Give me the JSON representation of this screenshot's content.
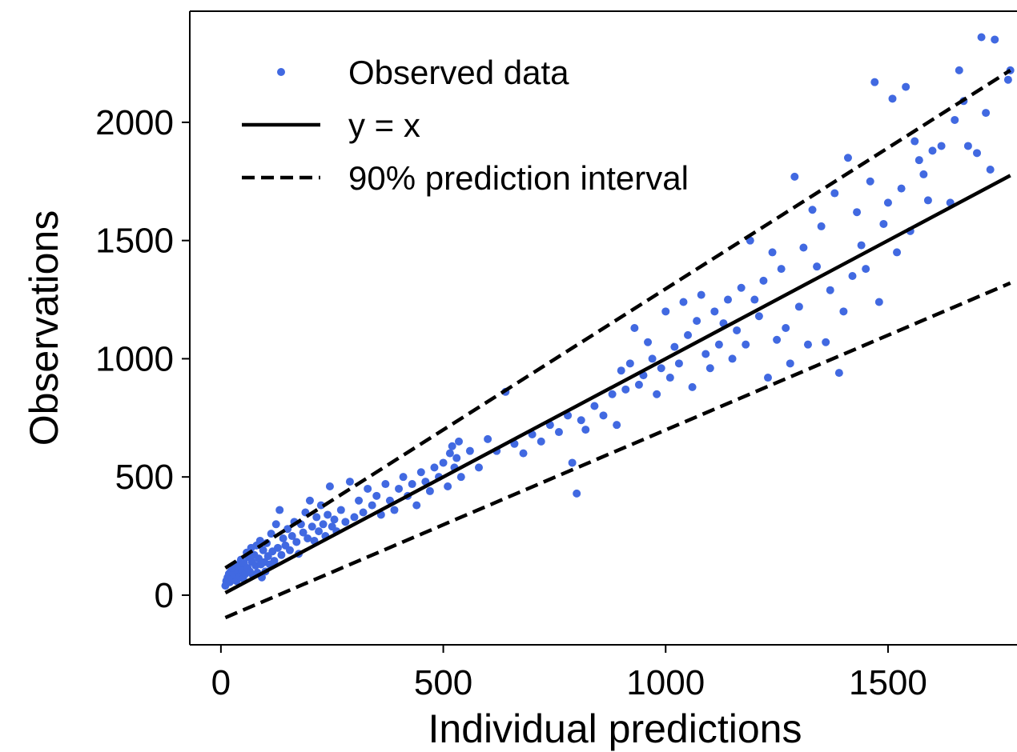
{
  "chart_data": {
    "type": "scatter",
    "title": "",
    "xlabel": "Individual predictions",
    "ylabel": "Observations",
    "xlim": [
      -70,
      1790
    ],
    "ylim": [
      -210,
      2470
    ],
    "xticks": [
      0,
      500,
      1000,
      1500
    ],
    "yticks": [
      0,
      500,
      1000,
      1500,
      2000
    ],
    "grid": false,
    "legend": "top-left",
    "colors": {
      "points": "#4169e1",
      "lines": "#000000"
    },
    "series": [
      {
        "name": "Observed data",
        "kind": "points",
        "points": [
          [
            10,
            40
          ],
          [
            12,
            60
          ],
          [
            15,
            75
          ],
          [
            18,
            90
          ],
          [
            20,
            55
          ],
          [
            22,
            100
          ],
          [
            25,
            70
          ],
          [
            28,
            110
          ],
          [
            30,
            85
          ],
          [
            32,
            130
          ],
          [
            35,
            60
          ],
          [
            38,
            95
          ],
          [
            40,
            120
          ],
          [
            42,
            80
          ],
          [
            45,
            150
          ],
          [
            48,
            105
          ],
          [
            50,
            70
          ],
          [
            52,
            135
          ],
          [
            55,
            90
          ],
          [
            58,
            180
          ],
          [
            60,
            115
          ],
          [
            62,
            160
          ],
          [
            65,
            100
          ],
          [
            68,
            200
          ],
          [
            70,
            140
          ],
          [
            72,
            85
          ],
          [
            75,
            170
          ],
          [
            78,
            125
          ],
          [
            80,
            210
          ],
          [
            82,
            95
          ],
          [
            85,
            155
          ],
          [
            88,
            230
          ],
          [
            90,
            130
          ],
          [
            92,
            75
          ],
          [
            95,
            190
          ],
          [
            98,
            140
          ],
          [
            100,
            100
          ],
          [
            103,
            220
          ],
          [
            106,
            165
          ],
          [
            110,
            130
          ],
          [
            113,
            260
          ],
          [
            116,
            185
          ],
          [
            120,
            145
          ],
          [
            124,
            300
          ],
          [
            128,
            200
          ],
          [
            132,
            360
          ],
          [
            136,
            170
          ],
          [
            140,
            240
          ],
          [
            145,
            210
          ],
          [
            150,
            280
          ],
          [
            155,
            190
          ],
          [
            160,
            250
          ],
          [
            165,
            310
          ],
          [
            170,
            225
          ],
          [
            175,
            175
          ],
          [
            180,
            300
          ],
          [
            185,
            265
          ],
          [
            190,
            350
          ],
          [
            195,
            240
          ],
          [
            200,
            400
          ],
          [
            205,
            290
          ],
          [
            210,
            230
          ],
          [
            215,
            330
          ],
          [
            220,
            270
          ],
          [
            225,
            380
          ],
          [
            230,
            300
          ],
          [
            235,
            250
          ],
          [
            240,
            340
          ],
          [
            245,
            460
          ],
          [
            250,
            290
          ],
          [
            255,
            320
          ],
          [
            260,
            270
          ],
          [
            270,
            360
          ],
          [
            280,
            310
          ],
          [
            290,
            480
          ],
          [
            300,
            330
          ],
          [
            310,
            400
          ],
          [
            320,
            350
          ],
          [
            330,
            450
          ],
          [
            340,
            380
          ],
          [
            350,
            420
          ],
          [
            360,
            340
          ],
          [
            370,
            470
          ],
          [
            380,
            400
          ],
          [
            390,
            360
          ],
          [
            400,
            450
          ],
          [
            410,
            500
          ],
          [
            420,
            420
          ],
          [
            430,
            470
          ],
          [
            440,
            380
          ],
          [
            450,
            520
          ],
          [
            460,
            480
          ],
          [
            470,
            440
          ],
          [
            480,
            540
          ],
          [
            490,
            500
          ],
          [
            500,
            560
          ],
          [
            510,
            460
          ],
          [
            515,
            600
          ],
          [
            520,
            630
          ],
          [
            525,
            540
          ],
          [
            530,
            580
          ],
          [
            535,
            650
          ],
          [
            540,
            500
          ],
          [
            560,
            610
          ],
          [
            580,
            540
          ],
          [
            600,
            660
          ],
          [
            620,
            610
          ],
          [
            640,
            860
          ],
          [
            660,
            640
          ],
          [
            680,
            600
          ],
          [
            700,
            680
          ],
          [
            720,
            650
          ],
          [
            740,
            720
          ],
          [
            760,
            690
          ],
          [
            780,
            760
          ],
          [
            790,
            560
          ],
          [
            800,
            430
          ],
          [
            810,
            740
          ],
          [
            820,
            700
          ],
          [
            840,
            800
          ],
          [
            860,
            760
          ],
          [
            880,
            850
          ],
          [
            890,
            720
          ],
          [
            900,
            950
          ],
          [
            910,
            870
          ],
          [
            920,
            980
          ],
          [
            930,
            1130
          ],
          [
            940,
            890
          ],
          [
            950,
            930
          ],
          [
            960,
            1070
          ],
          [
            970,
            1000
          ],
          [
            980,
            850
          ],
          [
            990,
            960
          ],
          [
            1000,
            1200
          ],
          [
            1010,
            920
          ],
          [
            1020,
            1050
          ],
          [
            1030,
            980
          ],
          [
            1040,
            1240
          ],
          [
            1050,
            1100
          ],
          [
            1060,
            880
          ],
          [
            1070,
            1160
          ],
          [
            1080,
            1270
          ],
          [
            1090,
            1020
          ],
          [
            1100,
            960
          ],
          [
            1110,
            1200
          ],
          [
            1120,
            1060
          ],
          [
            1130,
            1150
          ],
          [
            1140,
            1250
          ],
          [
            1150,
            1000
          ],
          [
            1160,
            1120
          ],
          [
            1170,
            1300
          ],
          [
            1180,
            1060
          ],
          [
            1190,
            1500
          ],
          [
            1200,
            1250
          ],
          [
            1210,
            1180
          ],
          [
            1220,
            1330
          ],
          [
            1230,
            920
          ],
          [
            1240,
            1450
          ],
          [
            1250,
            1080
          ],
          [
            1260,
            1380
          ],
          [
            1270,
            1130
          ],
          [
            1280,
            980
          ],
          [
            1290,
            1770
          ],
          [
            1300,
            1220
          ],
          [
            1310,
            1470
          ],
          [
            1320,
            1060
          ],
          [
            1330,
            1630
          ],
          [
            1340,
            1390
          ],
          [
            1350,
            1560
          ],
          [
            1360,
            1070
          ],
          [
            1370,
            1290
          ],
          [
            1380,
            1700
          ],
          [
            1390,
            940
          ],
          [
            1400,
            1200
          ],
          [
            1410,
            1850
          ],
          [
            1420,
            1350
          ],
          [
            1430,
            1620
          ],
          [
            1440,
            1480
          ],
          [
            1450,
            1380
          ],
          [
            1460,
            1750
          ],
          [
            1470,
            2170
          ],
          [
            1480,
            1240
          ],
          [
            1490,
            1570
          ],
          [
            1500,
            1660
          ],
          [
            1510,
            2100
          ],
          [
            1520,
            1450
          ],
          [
            1530,
            1720
          ],
          [
            1540,
            2150
          ],
          [
            1550,
            1540
          ],
          [
            1560,
            1920
          ],
          [
            1570,
            1840
          ],
          [
            1580,
            1780
          ],
          [
            1590,
            1670
          ],
          [
            1600,
            1880
          ],
          [
            1620,
            1900
          ],
          [
            1640,
            1660
          ],
          [
            1650,
            2010
          ],
          [
            1660,
            2220
          ],
          [
            1670,
            2090
          ],
          [
            1680,
            1900
          ],
          [
            1700,
            1870
          ],
          [
            1710,
            2360
          ],
          [
            1720,
            2040
          ],
          [
            1730,
            1800
          ],
          [
            1740,
            2350
          ],
          [
            1770,
            2180
          ],
          [
            1775,
            2220
          ]
        ]
      },
      {
        "name": "y = x",
        "kind": "line",
        "dash": "solid",
        "points": [
          [
            10,
            10
          ],
          [
            1775,
            1775
          ]
        ]
      },
      {
        "name": "90% prediction interval",
        "kind": "line",
        "dash": "dashed",
        "points": [
          [
            10,
            115
          ],
          [
            1775,
            2220
          ]
        ]
      },
      {
        "name": "",
        "kind": "line",
        "dash": "dashed",
        "points": [
          [
            10,
            -95
          ],
          [
            1775,
            1320
          ]
        ]
      }
    ]
  }
}
